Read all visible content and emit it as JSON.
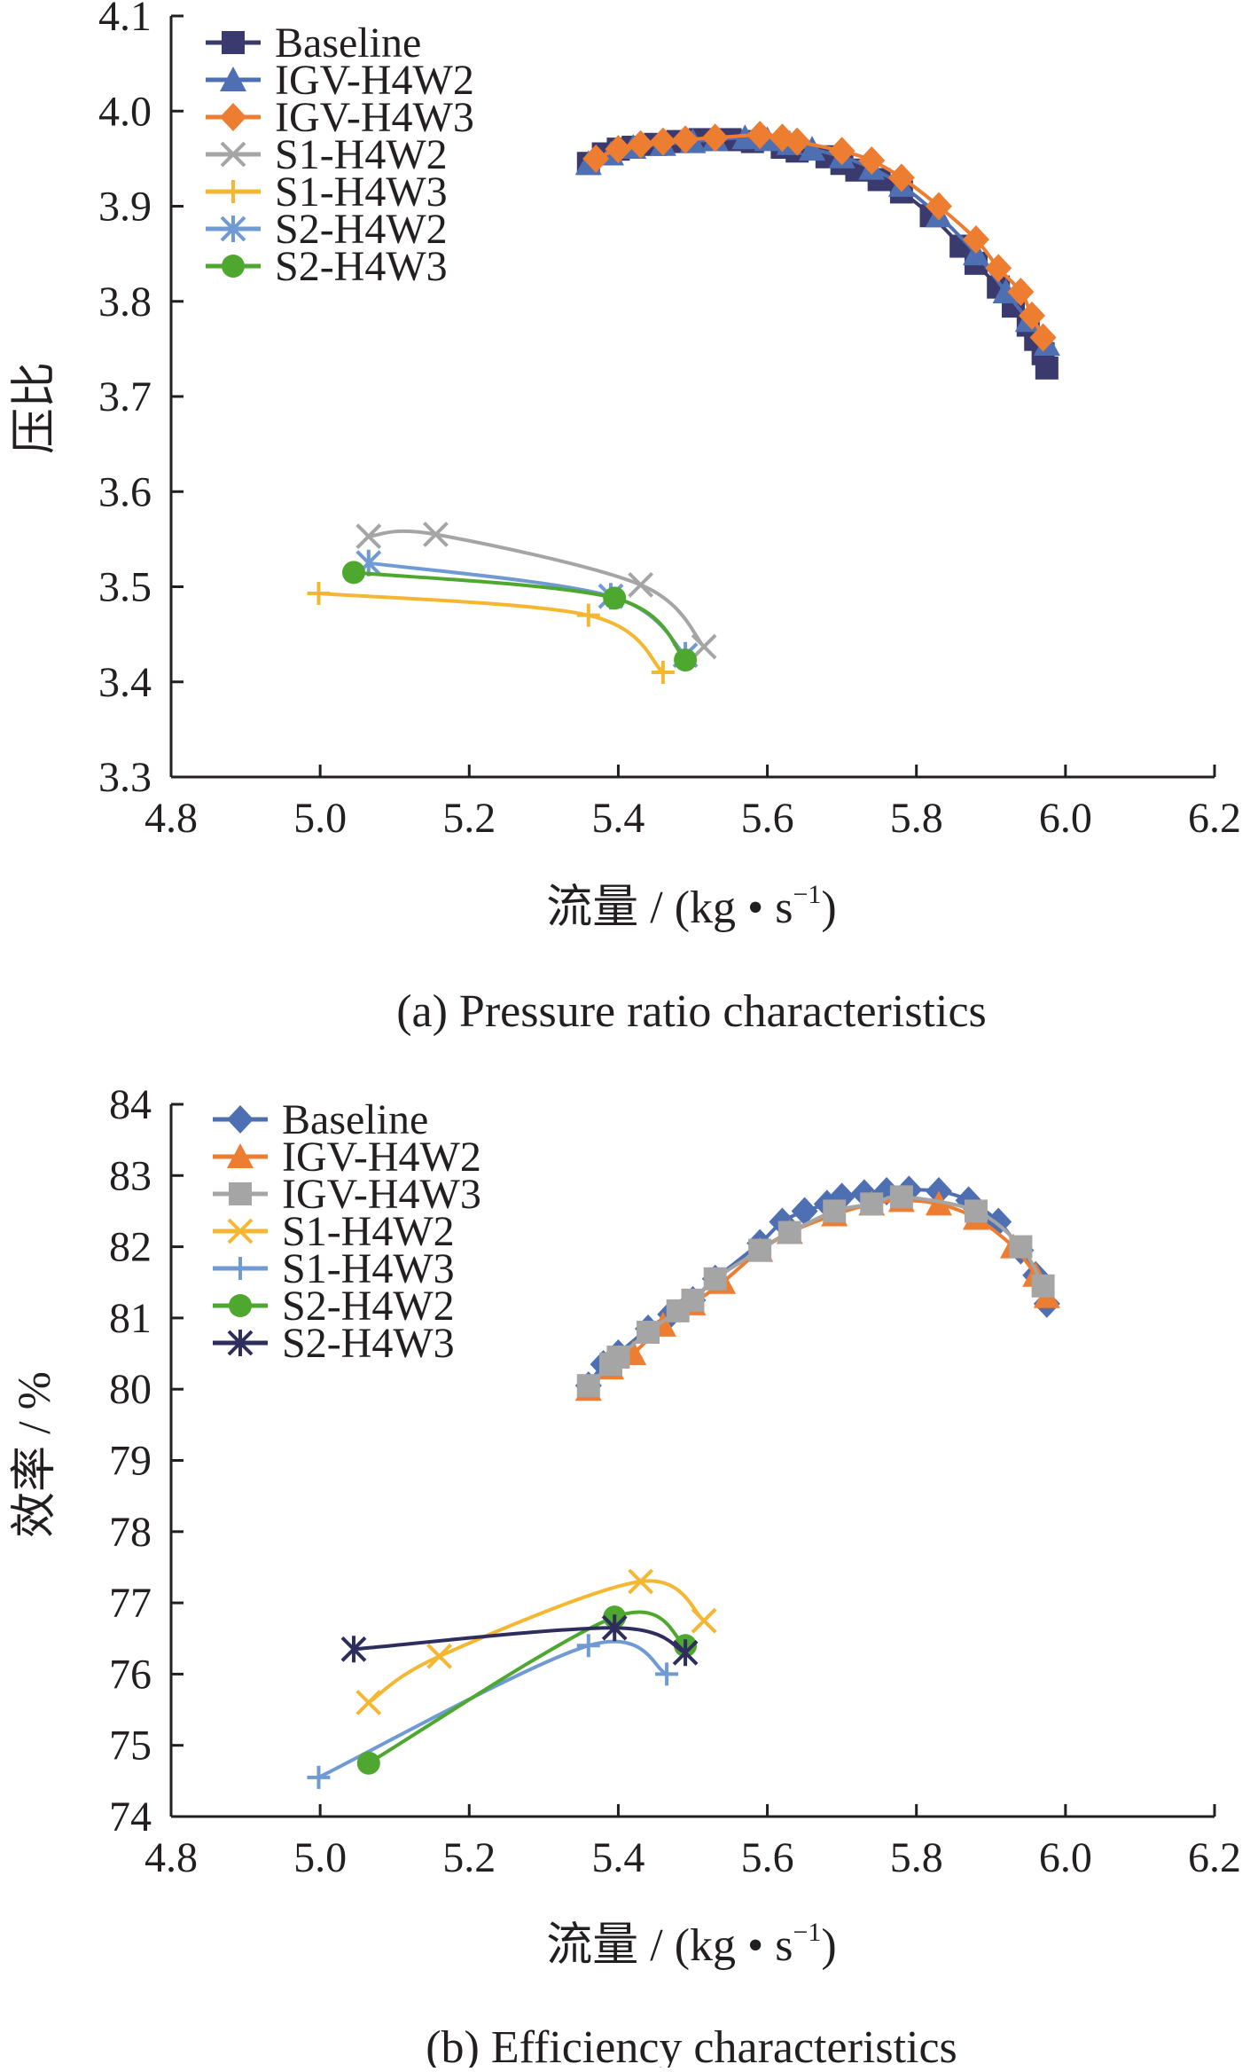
{
  "chart_data": [
    {
      "type": "line",
      "caption": "(a) Pressure ratio characteristics",
      "xlabel": "流量 / (kg • s",
      "xlabel_sup": "−1",
      "xlabel_end": ")",
      "ylabel": "压比",
      "xlim": [
        4.8,
        6.2
      ],
      "ylim": [
        3.3,
        4.1
      ],
      "xticks": [
        "4.8",
        "5.0",
        "5.2",
        "5.4",
        "5.6",
        "5.8",
        "6.0",
        "6.2"
      ],
      "yticks": [
        "3.3",
        "3.4",
        "3.5",
        "3.6",
        "3.7",
        "3.8",
        "3.9",
        "4.0",
        "4.1"
      ],
      "legend_position": "top-left",
      "series": [
        {
          "name": "Baseline",
          "color": "#3a3a6e",
          "marker": "square",
          "x": [
            5.36,
            5.38,
            5.4,
            5.42,
            5.45,
            5.48,
            5.51,
            5.55,
            5.58,
            5.62,
            5.64,
            5.68,
            5.7,
            5.72,
            5.75,
            5.78,
            5.82,
            5.86,
            5.88,
            5.91,
            5.93,
            5.95,
            5.96,
            5.97,
            5.975
          ],
          "y": [
            3.945,
            3.955,
            3.96,
            3.962,
            3.965,
            3.968,
            3.97,
            3.97,
            3.968,
            3.962,
            3.958,
            3.952,
            3.945,
            3.938,
            3.928,
            3.915,
            3.89,
            3.858,
            3.84,
            3.815,
            3.795,
            3.775,
            3.76,
            3.745,
            3.73
          ]
        },
        {
          "name": "IGV-H4W2",
          "color": "#4f6fb3",
          "marker": "triangle",
          "x": [
            5.36,
            5.39,
            5.42,
            5.46,
            5.5,
            5.53,
            5.57,
            5.6,
            5.63,
            5.66,
            5.7,
            5.74,
            5.78,
            5.83,
            5.88,
            5.92,
            5.95,
            5.975
          ],
          "y": [
            3.945,
            3.955,
            3.962,
            3.965,
            3.968,
            3.97,
            3.972,
            3.97,
            3.966,
            3.96,
            3.952,
            3.94,
            3.922,
            3.89,
            3.85,
            3.81,
            3.78,
            3.755
          ]
        },
        {
          "name": "IGV-H4W3",
          "color": "#ed7d31",
          "marker": "diamond",
          "x": [
            5.37,
            5.4,
            5.43,
            5.46,
            5.49,
            5.53,
            5.59,
            5.62,
            5.64,
            5.7,
            5.74,
            5.78,
            5.83,
            5.88,
            5.91,
            5.94,
            5.955,
            5.97
          ],
          "y": [
            3.95,
            3.96,
            3.965,
            3.968,
            3.97,
            3.972,
            3.975,
            3.972,
            3.968,
            3.958,
            3.948,
            3.93,
            3.9,
            3.865,
            3.835,
            3.81,
            3.785,
            3.762
          ]
        },
        {
          "name": "S1-H4W2",
          "color": "#a5a5a5",
          "marker": "x",
          "x": [
            5.065,
            5.155,
            5.43,
            5.515
          ],
          "y": [
            3.553,
            3.555,
            3.502,
            3.437
          ]
        },
        {
          "name": "S1-H4W3",
          "color": "#f5b731",
          "marker": "plus",
          "x": [
            4.998,
            5.36,
            5.46
          ],
          "y": [
            3.493,
            3.47,
            3.41
          ]
        },
        {
          "name": "S2-H4W2",
          "color": "#6f9ad3",
          "marker": "asterisk",
          "x": [
            5.065,
            5.39,
            5.49
          ],
          "y": [
            3.525,
            3.49,
            3.428
          ]
        },
        {
          "name": "S2-H4W3",
          "color": "#4ea72e",
          "marker": "circle",
          "x": [
            5.045,
            5.395,
            5.49
          ],
          "y": [
            3.515,
            3.488,
            3.423
          ]
        }
      ]
    },
    {
      "type": "line",
      "caption": "(b) Efficiency characteristics",
      "xlabel": "流量 / (kg • s",
      "xlabel_sup": "−1",
      "xlabel_end": ")",
      "ylabel": "效率 / %",
      "xlim": [
        4.8,
        6.2
      ],
      "ylim": [
        74,
        84
      ],
      "xticks": [
        "4.8",
        "5.0",
        "5.2",
        "5.4",
        "5.6",
        "5.8",
        "6.0",
        "6.2"
      ],
      "yticks": [
        "74",
        "75",
        "76",
        "77",
        "78",
        "79",
        "80",
        "81",
        "82",
        "83",
        "84"
      ],
      "legend_position": "top-left",
      "series": [
        {
          "name": "Baseline",
          "color": "#4f6fb3",
          "marker": "diamond",
          "x": [
            5.36,
            5.38,
            5.4,
            5.44,
            5.47,
            5.5,
            5.53,
            5.59,
            5.62,
            5.65,
            5.68,
            5.7,
            5.73,
            5.76,
            5.79,
            5.83,
            5.87,
            5.91,
            5.94,
            5.96,
            5.975
          ],
          "y": [
            80.05,
            80.35,
            80.5,
            80.85,
            81.05,
            81.25,
            81.55,
            82.05,
            82.35,
            82.5,
            82.6,
            82.7,
            82.75,
            82.78,
            82.8,
            82.78,
            82.65,
            82.35,
            81.95,
            81.6,
            81.2
          ]
        },
        {
          "name": "IGV-H4W2",
          "color": "#ed7d31",
          "marker": "triangle",
          "x": [
            5.36,
            5.39,
            5.42,
            5.46,
            5.5,
            5.54,
            5.59,
            5.63,
            5.69,
            5.74,
            5.78,
            5.83,
            5.88,
            5.93,
            5.96,
            5.975
          ],
          "y": [
            80.0,
            80.3,
            80.5,
            80.9,
            81.2,
            81.5,
            81.95,
            82.2,
            82.45,
            82.6,
            82.65,
            82.6,
            82.4,
            82.0,
            81.6,
            81.3
          ]
        },
        {
          "name": "IGV-H4W3",
          "color": "#a5a5a5",
          "marker": "square",
          "x": [
            5.36,
            5.39,
            5.4,
            5.44,
            5.48,
            5.5,
            5.53,
            5.59,
            5.63,
            5.69,
            5.74,
            5.78,
            5.88,
            5.94,
            5.97
          ],
          "y": [
            80.05,
            80.35,
            80.45,
            80.8,
            81.1,
            81.25,
            81.55,
            81.95,
            82.2,
            82.5,
            82.6,
            82.7,
            82.5,
            82.0,
            81.45
          ]
        },
        {
          "name": "S1-H4W2",
          "color": "#f5b731",
          "marker": "x",
          "x": [
            5.065,
            5.16,
            5.43,
            5.515
          ],
          "y": [
            75.6,
            76.25,
            77.3,
            76.75
          ]
        },
        {
          "name": "S1-H4W3",
          "color": "#6f9ad3",
          "marker": "plus",
          "x": [
            4.998,
            5.36,
            5.465
          ],
          "y": [
            74.55,
            76.4,
            76.0
          ]
        },
        {
          "name": "S2-H4W2",
          "color": "#4ea72e",
          "marker": "circle",
          "x": [
            5.065,
            5.395,
            5.49
          ],
          "y": [
            74.75,
            76.8,
            76.4
          ]
        },
        {
          "name": "S2-H4W3",
          "color": "#2e2e5e",
          "marker": "asterisk",
          "x": [
            5.045,
            5.395,
            5.49
          ],
          "y": [
            76.35,
            76.65,
            76.3
          ]
        }
      ]
    }
  ]
}
